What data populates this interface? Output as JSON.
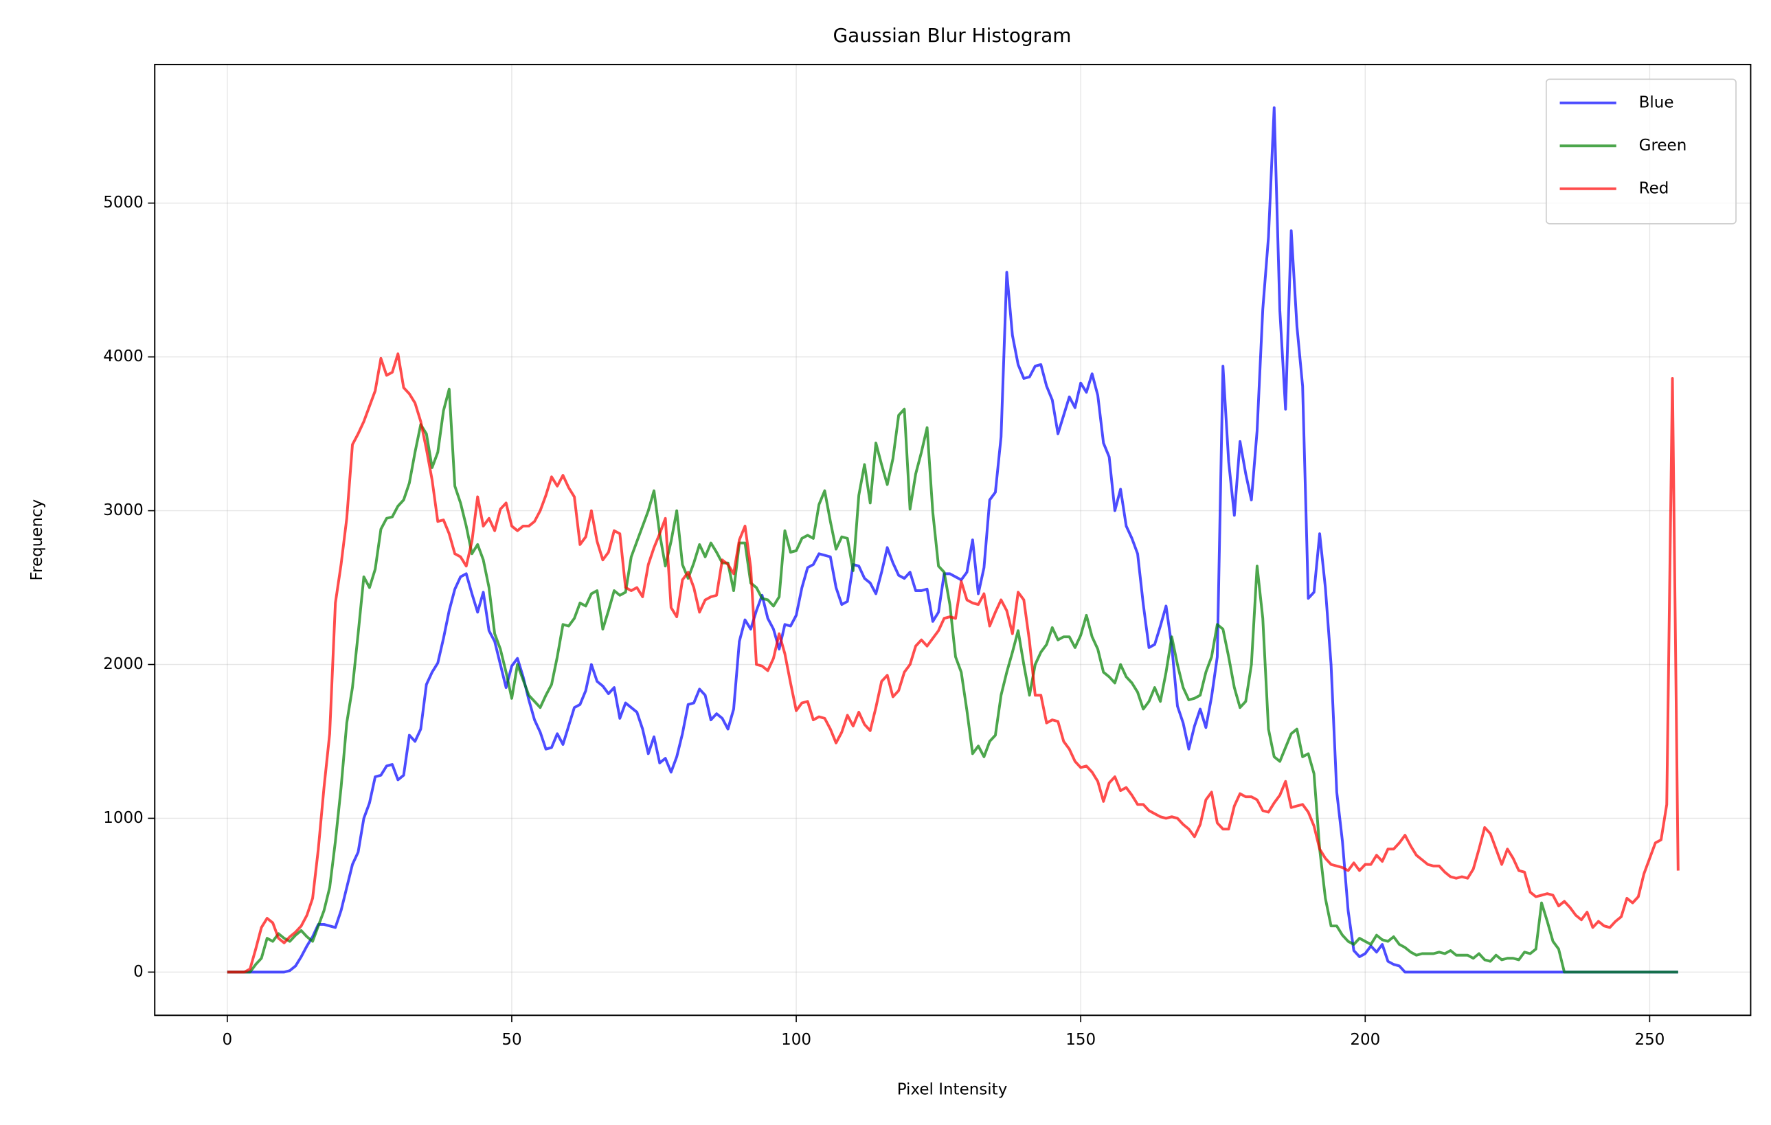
{
  "chart_data": {
    "type": "line",
    "title": "Gaussian Blur Histogram",
    "xlabel": "Pixel Intensity",
    "ylabel": "Frequency",
    "xlim": [
      -12.75,
      267.75
    ],
    "ylim": [
      -281,
      5901
    ],
    "xticks": [
      0,
      50,
      100,
      150,
      200,
      250
    ],
    "yticks": [
      0,
      1000,
      2000,
      3000,
      4000,
      5000
    ],
    "grid": true,
    "legend": "upper right",
    "x": [
      0,
      1,
      2,
      3,
      4,
      5,
      6,
      7,
      8,
      9,
      10,
      11,
      12,
      13,
      14,
      15,
      16,
      17,
      18,
      19,
      20,
      21,
      22,
      23,
      24,
      25,
      26,
      27,
      28,
      29,
      30,
      31,
      32,
      33,
      34,
      35,
      36,
      37,
      38,
      39,
      40,
      41,
      42,
      43,
      44,
      45,
      46,
      47,
      48,
      49,
      50,
      51,
      52,
      53,
      54,
      55,
      56,
      57,
      58,
      59,
      60,
      61,
      62,
      63,
      64,
      65,
      66,
      67,
      68,
      69,
      70,
      71,
      72,
      73,
      74,
      75,
      76,
      77,
      78,
      79,
      80,
      81,
      82,
      83,
      84,
      85,
      86,
      87,
      88,
      89,
      90,
      91,
      92,
      93,
      94,
      95,
      96,
      97,
      98,
      99,
      100,
      101,
      102,
      103,
      104,
      105,
      106,
      107,
      108,
      109,
      110,
      111,
      112,
      113,
      114,
      115,
      116,
      117,
      118,
      119,
      120,
      121,
      122,
      123,
      124,
      125,
      126,
      127,
      128,
      129,
      130,
      131,
      132,
      133,
      134,
      135,
      136,
      137,
      138,
      139,
      140,
      141,
      142,
      143,
      144,
      145,
      146,
      147,
      148,
      149,
      150,
      151,
      152,
      153,
      154,
      155,
      156,
      157,
      158,
      159,
      160,
      161,
      162,
      163,
      164,
      165,
      166,
      167,
      168,
      169,
      170,
      171,
      172,
      173,
      174,
      175,
      176,
      177,
      178,
      179,
      180,
      181,
      182,
      183,
      184,
      185,
      186,
      187,
      188,
      189,
      190,
      191,
      192,
      193,
      194,
      195,
      196,
      197,
      198,
      199,
      200,
      201,
      202,
      203,
      204,
      205,
      206,
      207,
      208,
      209,
      210,
      211,
      212,
      213,
      214,
      215,
      216,
      217,
      218,
      219,
      220,
      221,
      222,
      223,
      224,
      225,
      226,
      227,
      228,
      229,
      230,
      231,
      232,
      233,
      234,
      235,
      236,
      237,
      238,
      239,
      240,
      241,
      242,
      243,
      244,
      245,
      246,
      247,
      248,
      249,
      250,
      251,
      252,
      253,
      254,
      255
    ],
    "series": [
      {
        "name": "Blue",
        "color": "#0000ff",
        "values": [
          0,
          0,
          0,
          0,
          0,
          0,
          0,
          0,
          0,
          0,
          0,
          10,
          40,
          100,
          170,
          230,
          310,
          310,
          300,
          290,
          400,
          550,
          700,
          780,
          1000,
          1100,
          1270,
          1280,
          1340,
          1350,
          1250,
          1280,
          1540,
          1500,
          1580,
          1870,
          1950,
          2010,
          2170,
          2350,
          2490,
          2570,
          2590,
          2460,
          2340,
          2470,
          2220,
          2150,
          2000,
          1850,
          1990,
          2040,
          1920,
          1770,
          1640,
          1560,
          1450,
          1460,
          1550,
          1480,
          1600,
          1720,
          1740,
          1830,
          2000,
          1890,
          1860,
          1810,
          1850,
          1650,
          1750,
          1720,
          1690,
          1580,
          1420,
          1530,
          1360,
          1390,
          1300,
          1400,
          1550,
          1740,
          1750,
          1840,
          1800,
          1640,
          1680,
          1650,
          1580,
          1710,
          2150,
          2290,
          2230,
          2350,
          2450,
          2300,
          2230,
          2100,
          2260,
          2250,
          2320,
          2500,
          2630,
          2650,
          2720,
          2710,
          2700,
          2500,
          2390,
          2410,
          2650,
          2640,
          2560,
          2530,
          2460,
          2600,
          2760,
          2660,
          2580,
          2560,
          2600,
          2480,
          2480,
          2490,
          2280,
          2340,
          2590,
          2590,
          2570,
          2550,
          2600,
          2810,
          2460,
          2630,
          3070,
          3120,
          3480,
          4550,
          4140,
          3950,
          3860,
          3870,
          3940,
          3950,
          3810,
          3720,
          3500,
          3620,
          3740,
          3670,
          3830,
          3770,
          3890,
          3750,
          3440,
          3350,
          3000,
          3140,
          2900,
          2820,
          2720,
          2390,
          2110,
          2130,
          2250,
          2380,
          2120,
          1730,
          1620,
          1450,
          1600,
          1710,
          1590,
          1790,
          2050,
          3940,
          3320,
          2970,
          3450,
          3240,
          3070,
          3520,
          4310,
          4780,
          5620,
          4300,
          3660,
          4820,
          4200,
          3810,
          2430,
          2470,
          2850,
          2500,
          2000,
          1170,
          850,
          400,
          140,
          100,
          120,
          170,
          130,
          180,
          70,
          50,
          40,
          0,
          0,
          0,
          0,
          0,
          0,
          0,
          0,
          0,
          0,
          0,
          0,
          0,
          0,
          0,
          0,
          0,
          0,
          0,
          0,
          0,
          0,
          0,
          0,
          0,
          0,
          0,
          0,
          0,
          0,
          0,
          0,
          0,
          0,
          0,
          0,
          0,
          0,
          0,
          0,
          0,
          0,
          0,
          0,
          0,
          0,
          0,
          0,
          0
        ]
      },
      {
        "name": "Green",
        "color": "#008000",
        "values": [
          0,
          0,
          0,
          0,
          0,
          50,
          90,
          220,
          200,
          250,
          220,
          200,
          240,
          270,
          230,
          200,
          300,
          400,
          550,
          850,
          1200,
          1620,
          1850,
          2200,
          2570,
          2500,
          2620,
          2880,
          2950,
          2960,
          3030,
          3070,
          3180,
          3380,
          3560,
          3500,
          3280,
          3380,
          3650,
          3790,
          3160,
          3050,
          2900,
          2720,
          2780,
          2680,
          2500,
          2200,
          2100,
          1950,
          1780,
          2000,
          1900,
          1800,
          1760,
          1720,
          1800,
          1870,
          2050,
          2260,
          2250,
          2300,
          2400,
          2380,
          2460,
          2480,
          2230,
          2350,
          2480,
          2450,
          2470,
          2700,
          2800,
          2900,
          3000,
          3130,
          2850,
          2640,
          2800,
          3000,
          2650,
          2560,
          2660,
          2780,
          2700,
          2790,
          2730,
          2660,
          2660,
          2480,
          2790,
          2790,
          2530,
          2500,
          2430,
          2420,
          2380,
          2440,
          2870,
          2730,
          2740,
          2820,
          2840,
          2820,
          3040,
          3130,
          2930,
          2750,
          2830,
          2820,
          2610,
          3100,
          3300,
          3050,
          3440,
          3300,
          3170,
          3340,
          3620,
          3660,
          3010,
          3240,
          3380,
          3540,
          2990,
          2640,
          2600,
          2390,
          2050,
          1950,
          1700,
          1420,
          1470,
          1400,
          1500,
          1540,
          1800,
          1950,
          2080,
          2220,
          2000,
          1800,
          2000,
          2080,
          2130,
          2240,
          2160,
          2180,
          2180,
          2110,
          2190,
          2320,
          2180,
          2100,
          1950,
          1920,
          1880,
          2000,
          1920,
          1880,
          1820,
          1710,
          1760,
          1850,
          1760,
          1950,
          2180,
          2000,
          1850,
          1770,
          1780,
          1800,
          1950,
          2050,
          2260,
          2230,
          2050,
          1850,
          1720,
          1760,
          2000,
          2640,
          2300,
          1580,
          1400,
          1370,
          1460,
          1550,
          1580,
          1400,
          1420,
          1290,
          800,
          480,
          300,
          300,
          240,
          200,
          180,
          220,
          200,
          180,
          240,
          210,
          200,
          230,
          180,
          160,
          130,
          110,
          120,
          120,
          120,
          130,
          120,
          140,
          110,
          110,
          110,
          90,
          120,
          80,
          70,
          110,
          80,
          90,
          90,
          80,
          130,
          120,
          150,
          450,
          330,
          200,
          150,
          0,
          0,
          0,
          0,
          0,
          0,
          0,
          0,
          0,
          0,
          0,
          0,
          0,
          0,
          0,
          0,
          0,
          0,
          0,
          0,
          0
        ]
      },
      {
        "name": "Red",
        "color": "#ff0000",
        "values": [
          0,
          0,
          0,
          0,
          20,
          150,
          290,
          350,
          320,
          220,
          190,
          230,
          260,
          300,
          370,
          480,
          800,
          1200,
          1550,
          2400,
          2650,
          2950,
          3430,
          3500,
          3580,
          3680,
          3780,
          3990,
          3880,
          3900,
          4020,
          3800,
          3760,
          3700,
          3580,
          3400,
          3200,
          2930,
          2940,
          2850,
          2720,
          2700,
          2640,
          2800,
          3090,
          2900,
          2950,
          2870,
          3010,
          3050,
          2900,
          2870,
          2900,
          2900,
          2930,
          3000,
          3100,
          3220,
          3160,
          3230,
          3150,
          3090,
          2780,
          2830,
          3000,
          2800,
          2680,
          2730,
          2870,
          2850,
          2500,
          2480,
          2500,
          2440,
          2650,
          2760,
          2850,
          2950,
          2370,
          2310,
          2550,
          2600,
          2500,
          2340,
          2420,
          2440,
          2450,
          2680,
          2650,
          2590,
          2810,
          2900,
          2630,
          2000,
          1990,
          1960,
          2040,
          2200,
          2070,
          1880,
          1700,
          1750,
          1760,
          1640,
          1660,
          1650,
          1580,
          1490,
          1560,
          1670,
          1600,
          1690,
          1610,
          1570,
          1720,
          1890,
          1930,
          1790,
          1830,
          1950,
          2000,
          2120,
          2160,
          2120,
          2170,
          2220,
          2300,
          2310,
          2300,
          2540,
          2420,
          2400,
          2390,
          2460,
          2250,
          2340,
          2420,
          2350,
          2200,
          2470,
          2420,
          2150,
          1800,
          1800,
          1620,
          1640,
          1630,
          1500,
          1450,
          1370,
          1330,
          1340,
          1300,
          1240,
          1110,
          1230,
          1270,
          1180,
          1200,
          1150,
          1090,
          1090,
          1050,
          1030,
          1010,
          1000,
          1010,
          1000,
          960,
          930,
          880,
          960,
          1120,
          1170,
          970,
          930,
          930,
          1080,
          1160,
          1140,
          1140,
          1120,
          1050,
          1040,
          1100,
          1150,
          1240,
          1070,
          1080,
          1090,
          1040,
          950,
          800,
          740,
          700,
          690,
          680,
          660,
          710,
          660,
          700,
          700,
          760,
          720,
          800,
          800,
          840,
          890,
          820,
          760,
          730,
          700,
          690,
          690,
          650,
          620,
          610,
          620,
          610,
          670,
          800,
          940,
          900,
          800,
          700,
          800,
          740,
          660,
          650,
          520,
          490,
          500,
          510,
          500,
          430,
          460,
          420,
          370,
          340,
          390,
          290,
          330,
          300,
          290,
          330,
          360,
          480,
          450,
          490,
          640,
          740,
          840,
          860,
          1090,
          3860,
          660
        ]
      }
    ]
  }
}
